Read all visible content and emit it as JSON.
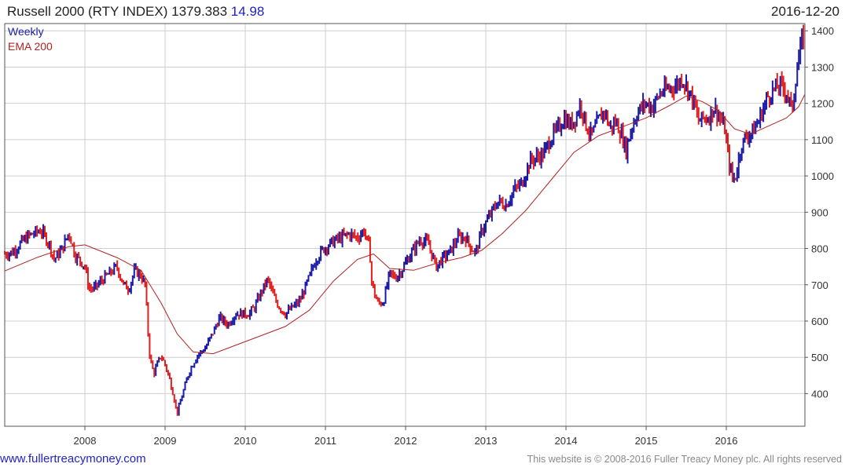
{
  "header": {
    "symbol": "Russell 2000 (RTY INDEX)",
    "last": "1379.383",
    "change": "14.98",
    "date": "2016-12-20"
  },
  "legend": {
    "frequency": "Weekly",
    "ema": "EMA 200"
  },
  "footer": {
    "url": "www.fullertreacymoney.com",
    "copyright": "This website is © 2008-2016 Fuller Treacy Money plc. All rights reserved"
  },
  "colors": {
    "up": "#1a1aa8",
    "down": "#e01e1e",
    "ema": "#b22222",
    "grid": "#cfcfcf",
    "axis": "#555555"
  },
  "chart_data": {
    "type": "line",
    "frequency": "Weekly",
    "grid": true,
    "x_range": [
      2007.0,
      2016.98
    ],
    "ylim": [
      310,
      1420
    ],
    "y_ticks": [
      400,
      500,
      600,
      700,
      800,
      900,
      1000,
      1100,
      1200,
      1300,
      1400
    ],
    "x_ticks": [
      2008,
      2009,
      2010,
      2011,
      2012,
      2013,
      2014,
      2015,
      2016
    ],
    "series": [
      {
        "name": "Weekly",
        "style": "price-bars",
        "points": [
          [
            2007.0,
            785
          ],
          [
            2007.1,
            790
          ],
          [
            2007.2,
            815
          ],
          [
            2007.3,
            835
          ],
          [
            2007.45,
            850
          ],
          [
            2007.55,
            815
          ],
          [
            2007.62,
            770
          ],
          [
            2007.72,
            800
          ],
          [
            2007.8,
            845
          ],
          [
            2007.88,
            780
          ],
          [
            2007.95,
            765
          ],
          [
            2008.0,
            750
          ],
          [
            2008.05,
            690
          ],
          [
            2008.12,
            690
          ],
          [
            2008.2,
            710
          ],
          [
            2008.3,
            730
          ],
          [
            2008.4,
            750
          ],
          [
            2008.48,
            700
          ],
          [
            2008.55,
            690
          ],
          [
            2008.62,
            740
          ],
          [
            2008.7,
            725
          ],
          [
            2008.75,
            700
          ],
          [
            2008.78,
            600
          ],
          [
            2008.8,
            520
          ],
          [
            2008.83,
            480
          ],
          [
            2008.86,
            455
          ],
          [
            2008.9,
            480
          ],
          [
            2008.95,
            505
          ],
          [
            2009.0,
            480
          ],
          [
            2009.05,
            445
          ],
          [
            2009.1,
            400
          ],
          [
            2009.15,
            345
          ],
          [
            2009.22,
            400
          ],
          [
            2009.3,
            460
          ],
          [
            2009.4,
            505
          ],
          [
            2009.5,
            525
          ],
          [
            2009.6,
            570
          ],
          [
            2009.68,
            610
          ],
          [
            2009.78,
            590
          ],
          [
            2009.88,
            620
          ],
          [
            2009.95,
            620
          ],
          [
            2010.05,
            620
          ],
          [
            2010.12,
            640
          ],
          [
            2010.2,
            680
          ],
          [
            2010.28,
            715
          ],
          [
            2010.35,
            670
          ],
          [
            2010.42,
            640
          ],
          [
            2010.5,
            620
          ],
          [
            2010.6,
            640
          ],
          [
            2010.68,
            655
          ],
          [
            2010.78,
            710
          ],
          [
            2010.88,
            770
          ],
          [
            2010.98,
            800
          ],
          [
            2011.1,
            820
          ],
          [
            2011.2,
            830
          ],
          [
            2011.3,
            840
          ],
          [
            2011.4,
            830
          ],
          [
            2011.48,
            850
          ],
          [
            2011.55,
            800
          ],
          [
            2011.58,
            700
          ],
          [
            2011.65,
            650
          ],
          [
            2011.72,
            650
          ],
          [
            2011.8,
            730
          ],
          [
            2011.88,
            720
          ],
          [
            2011.95,
            740
          ],
          [
            2012.05,
            780
          ],
          [
            2012.18,
            825
          ],
          [
            2012.28,
            815
          ],
          [
            2012.38,
            750
          ],
          [
            2012.45,
            770
          ],
          [
            2012.55,
            790
          ],
          [
            2012.65,
            830
          ],
          [
            2012.75,
            830
          ],
          [
            2012.82,
            800
          ],
          [
            2012.88,
            790
          ],
          [
            2012.95,
            850
          ],
          [
            2013.05,
            890
          ],
          [
            2013.15,
            930
          ],
          [
            2013.25,
            920
          ],
          [
            2013.35,
            960
          ],
          [
            2013.45,
            980
          ],
          [
            2013.55,
            1040
          ],
          [
            2013.62,
            1050
          ],
          [
            2013.72,
            1060
          ],
          [
            2013.8,
            1100
          ],
          [
            2013.9,
            1130
          ],
          [
            2013.98,
            1160
          ],
          [
            2014.05,
            1140
          ],
          [
            2014.12,
            1160
          ],
          [
            2014.18,
            1200
          ],
          [
            2014.25,
            1140
          ],
          [
            2014.32,
            1110
          ],
          [
            2014.4,
            1150
          ],
          [
            2014.48,
            1180
          ],
          [
            2014.55,
            1130
          ],
          [
            2014.62,
            1150
          ],
          [
            2014.7,
            1110
          ],
          [
            2014.75,
            1070
          ],
          [
            2014.8,
            1120
          ],
          [
            2014.88,
            1170
          ],
          [
            2014.98,
            1200
          ],
          [
            2015.08,
            1190
          ],
          [
            2015.18,
            1230
          ],
          [
            2015.28,
            1240
          ],
          [
            2015.38,
            1250
          ],
          [
            2015.45,
            1270
          ],
          [
            2015.52,
            1240
          ],
          [
            2015.6,
            1200
          ],
          [
            2015.65,
            1150
          ],
          [
            2015.72,
            1160
          ],
          [
            2015.78,
            1160
          ],
          [
            2015.85,
            1190
          ],
          [
            2015.92,
            1160
          ],
          [
            2015.98,
            1130
          ],
          [
            2016.03,
            1040
          ],
          [
            2016.08,
            990
          ],
          [
            2016.12,
            1000
          ],
          [
            2016.18,
            1080
          ],
          [
            2016.25,
            1110
          ],
          [
            2016.32,
            1120
          ],
          [
            2016.4,
            1150
          ],
          [
            2016.45,
            1180
          ],
          [
            2016.52,
            1220
          ],
          [
            2016.6,
            1240
          ],
          [
            2016.68,
            1250
          ],
          [
            2016.75,
            1230
          ],
          [
            2016.82,
            1180
          ],
          [
            2016.86,
            1260
          ],
          [
            2016.9,
            1320
          ],
          [
            2016.95,
            1380
          ],
          [
            2016.98,
            1379
          ]
        ]
      },
      {
        "name": "EMA 200",
        "style": "line",
        "points": [
          [
            2007.0,
            738
          ],
          [
            2007.4,
            775
          ],
          [
            2007.8,
            805
          ],
          [
            2008.0,
            810
          ],
          [
            2008.4,
            775
          ],
          [
            2008.7,
            740
          ],
          [
            2008.95,
            650
          ],
          [
            2009.15,
            565
          ],
          [
            2009.35,
            515
          ],
          [
            2009.6,
            510
          ],
          [
            2009.9,
            535
          ],
          [
            2010.2,
            560
          ],
          [
            2010.5,
            585
          ],
          [
            2010.8,
            630
          ],
          [
            2011.1,
            710
          ],
          [
            2011.4,
            770
          ],
          [
            2011.6,
            785
          ],
          [
            2011.8,
            745
          ],
          [
            2012.1,
            740
          ],
          [
            2012.4,
            760
          ],
          [
            2012.7,
            775
          ],
          [
            2012.95,
            795
          ],
          [
            2013.2,
            840
          ],
          [
            2013.5,
            905
          ],
          [
            2013.8,
            985
          ],
          [
            2014.1,
            1065
          ],
          [
            2014.4,
            1110
          ],
          [
            2014.7,
            1135
          ],
          [
            2015.0,
            1160
          ],
          [
            2015.3,
            1195
          ],
          [
            2015.5,
            1220
          ],
          [
            2015.7,
            1205
          ],
          [
            2015.9,
            1180
          ],
          [
            2016.1,
            1130
          ],
          [
            2016.3,
            1115
          ],
          [
            2016.55,
            1140
          ],
          [
            2016.75,
            1160
          ],
          [
            2016.9,
            1190
          ],
          [
            2016.98,
            1225
          ]
        ]
      }
    ]
  }
}
